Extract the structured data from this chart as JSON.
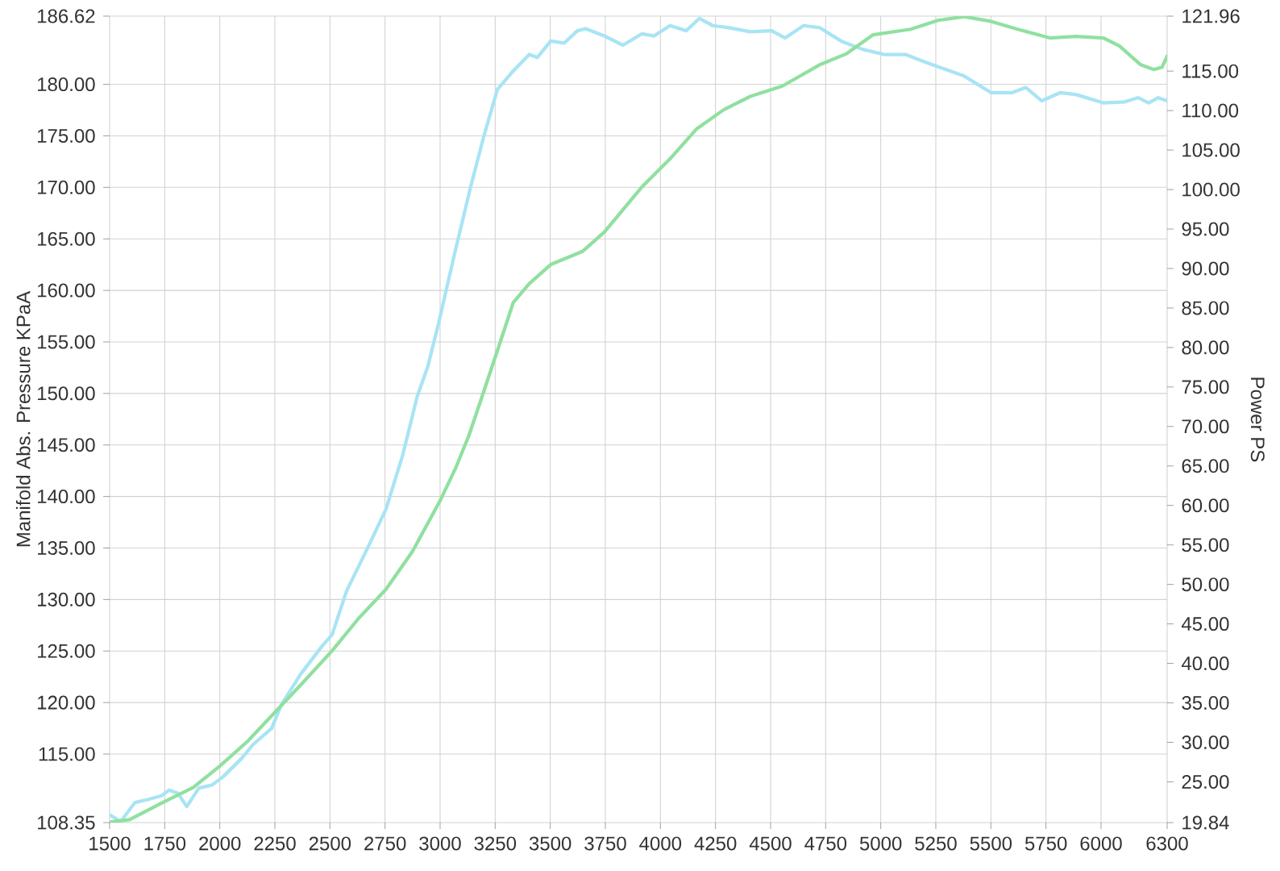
{
  "chart_data": {
    "type": "line",
    "ylabel": "Manifold Abs. Pressure KPaA",
    "y2label": "Power PS",
    "xlim": [
      1500,
      6300
    ],
    "xticks": [
      1500,
      1750,
      2000,
      2250,
      2500,
      2750,
      3000,
      3250,
      3500,
      3750,
      4000,
      4250,
      4500,
      4750,
      5000,
      5250,
      5500,
      5750,
      6000,
      6300
    ],
    "ylim": [
      108.35,
      186.62
    ],
    "yticks": [
      108.35,
      {
        "value": 115,
        "label": "115.00"
      },
      {
        "value": 120,
        "label": "120.00"
      },
      {
        "value": 125,
        "label": "125.00"
      },
      {
        "value": 130,
        "label": "130.00"
      },
      {
        "value": 135,
        "label": "135.00"
      },
      {
        "value": 140,
        "label": "140.00"
      },
      {
        "value": 145,
        "label": "145.00"
      },
      {
        "value": 150,
        "label": "150.00"
      },
      {
        "value": 155,
        "label": "155.00"
      },
      {
        "value": 160,
        "label": "160.00"
      },
      {
        "value": 165,
        "label": "165.00"
      },
      {
        "value": 170,
        "label": "170.00"
      },
      {
        "value": 175,
        "label": "175.00"
      },
      {
        "value": 180,
        "label": "180.00"
      },
      186.62
    ],
    "y2lim": [
      19.84,
      121.96
    ],
    "y2ticks": [
      19.84,
      {
        "value": 25,
        "label": "25.00"
      },
      {
        "value": 30,
        "label": "30.00"
      },
      {
        "value": 35,
        "label": "35.00"
      },
      {
        "value": 40,
        "label": "40.00"
      },
      {
        "value": 45,
        "label": "45.00"
      },
      {
        "value": 50,
        "label": "50.00"
      },
      {
        "value": 55,
        "label": "55.00"
      },
      {
        "value": 60,
        "label": "60.00"
      },
      {
        "value": 65,
        "label": "65.00"
      },
      {
        "value": 70,
        "label": "70.00"
      },
      {
        "value": 75,
        "label": "75.00"
      },
      {
        "value": 80,
        "label": "80.00"
      },
      {
        "value": 85,
        "label": "85.00"
      },
      {
        "value": 90,
        "label": "90.00"
      },
      {
        "value": 95,
        "label": "95.00"
      },
      {
        "value": 100,
        "label": "100.00"
      },
      {
        "value": 105,
        "label": "105.00"
      },
      {
        "value": 110,
        "label": "110.00"
      },
      {
        "value": 115,
        "label": "115.00"
      },
      121.96
    ],
    "grid": true,
    "series": [
      {
        "color": "#a8e4f4",
        "axis": "y",
        "x": [
          1500,
          1550,
          1615,
          1675,
          1735,
          1770,
          1810,
          1850,
          1905,
          1965,
          2015,
          2100,
          2150,
          2235,
          2280,
          2365,
          2465,
          2510,
          2575,
          2680,
          2755,
          2830,
          2896,
          2944,
          2993,
          3065,
          3138,
          3199,
          3260,
          3332,
          3405,
          3441,
          3502,
          3563,
          3623,
          3660,
          3745,
          3830,
          3915,
          3971,
          4044,
          4117,
          4177,
          4238,
          4311,
          4408,
          4505,
          4566,
          4650,
          4723,
          4820,
          4917,
          5015,
          5112,
          5209,
          5379,
          5500,
          5597,
          5658,
          5731,
          5816,
          5888,
          6010,
          6107,
          6168,
          6216,
          6260,
          6300
        ],
        "values": [
          109.1,
          108.45,
          110.3,
          110.6,
          110.95,
          111.5,
          111.2,
          109.9,
          111.7,
          112.0,
          112.8,
          114.6,
          115.9,
          117.5,
          119.8,
          122.7,
          125.5,
          126.6,
          130.8,
          135.4,
          138.8,
          144.0,
          149.7,
          152.6,
          156.8,
          163.5,
          170.0,
          175.0,
          179.5,
          181.3,
          182.9,
          182.6,
          184.2,
          184.0,
          185.2,
          185.4,
          184.7,
          183.8,
          184.9,
          184.7,
          185.7,
          185.2,
          186.4,
          185.7,
          185.5,
          185.1,
          185.2,
          184.5,
          185.7,
          185.5,
          184.2,
          183.4,
          182.9,
          182.9,
          182.1,
          180.8,
          179.2,
          179.2,
          179.7,
          178.4,
          179.2,
          179.0,
          178.2,
          178.3,
          178.7,
          178.2,
          178.7,
          178.4
        ]
      },
      {
        "color": "#90e0a0",
        "axis": "y2",
        "x": [
          1500,
          1590,
          1735,
          1880,
          2000,
          2125,
          2250,
          2365,
          2510,
          2630,
          2755,
          2875,
          3000,
          3070,
          3130,
          3187,
          3260,
          3332,
          3405,
          3502,
          3648,
          3745,
          3915,
          4044,
          4165,
          4287,
          4408,
          4553,
          4723,
          4845,
          4966,
          5136,
          5257,
          5379,
          5500,
          5621,
          5767,
          5888,
          6010,
          6083,
          6180,
          6240,
          6277,
          6300
        ],
        "values": [
          19.9,
          20.2,
          22.3,
          24.3,
          27.0,
          30.1,
          33.8,
          37.2,
          41.6,
          45.7,
          49.4,
          54.2,
          60.6,
          64.7,
          68.8,
          73.5,
          79.6,
          85.7,
          88.1,
          90.5,
          92.2,
          94.6,
          100.3,
          103.9,
          107.7,
          110.1,
          111.8,
          113.1,
          115.8,
          117.2,
          119.6,
          120.3,
          121.4,
          121.9,
          121.3,
          120.3,
          119.2,
          119.4,
          119.2,
          118.2,
          115.8,
          115.2,
          115.5,
          116.9
        ]
      }
    ]
  }
}
